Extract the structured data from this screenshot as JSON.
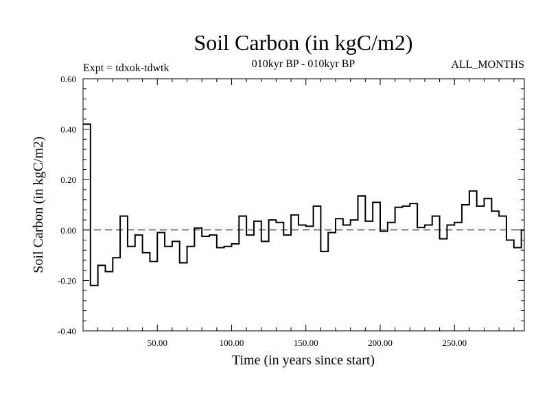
{
  "chart_data": {
    "type": "line",
    "style": "step",
    "title": "Soil Carbon (in kgC/m2)",
    "subtitle": "010kyr BP - 010kyr BP",
    "left_note": "Expt = tdxok-tdwtk",
    "right_note": "ALL_MONTHS",
    "xlabel": "Time (in years since start)",
    "ylabel": "Soil Carbon (in kgC/m2)",
    "xlim": [
      0,
      297
    ],
    "ylim": [
      -0.4,
      0.6
    ],
    "x_ticks": [
      "50.00",
      "100.00",
      "150.00",
      "200.00",
      "250.00"
    ],
    "x_tick_values": [
      50,
      100,
      150,
      200,
      250
    ],
    "y_ticks": [
      "-0.40",
      "-0.20",
      "0.00",
      "0.20",
      "0.40",
      "0.60"
    ],
    "y_tick_values": [
      -0.4,
      -0.2,
      0.0,
      0.2,
      0.4,
      0.6
    ],
    "reference_line": 0.0,
    "reference_style": "dashed",
    "step_width": 5,
    "series": [
      {
        "x": [
          0,
          5,
          10,
          15,
          20,
          25,
          30,
          35,
          40,
          45,
          50,
          55,
          60,
          65,
          70,
          75,
          80,
          85,
          90,
          95,
          100,
          105,
          110,
          115,
          120,
          125,
          130,
          135,
          140,
          145,
          150,
          155,
          160,
          165,
          170,
          175,
          180,
          185,
          190,
          195,
          200,
          205,
          210,
          215,
          220,
          225,
          230,
          235,
          240,
          245,
          250,
          255,
          260,
          265,
          270,
          275,
          280,
          285,
          290,
          295
        ],
        "values": [
          0.42,
          -0.22,
          -0.14,
          -0.165,
          -0.11,
          0.055,
          -0.065,
          -0.02,
          -0.09,
          -0.125,
          -0.01,
          -0.065,
          -0.045,
          -0.13,
          -0.065,
          0.008,
          -0.025,
          -0.02,
          -0.07,
          -0.065,
          -0.055,
          0.055,
          -0.02,
          0.035,
          -0.045,
          0.04,
          0.03,
          -0.02,
          0.06,
          0.02,
          0.015,
          0.095,
          -0.085,
          -0.01,
          0.045,
          0.02,
          0.04,
          0.135,
          0.035,
          0.11,
          -0.005,
          0.03,
          0.09,
          0.095,
          0.105,
          0.01,
          0.02,
          0.055,
          -0.035,
          0.02,
          0.03,
          0.1,
          0.155,
          0.095,
          0.125,
          0.075,
          0.055,
          -0.04,
          -0.07,
          0.0
        ]
      }
    ]
  }
}
